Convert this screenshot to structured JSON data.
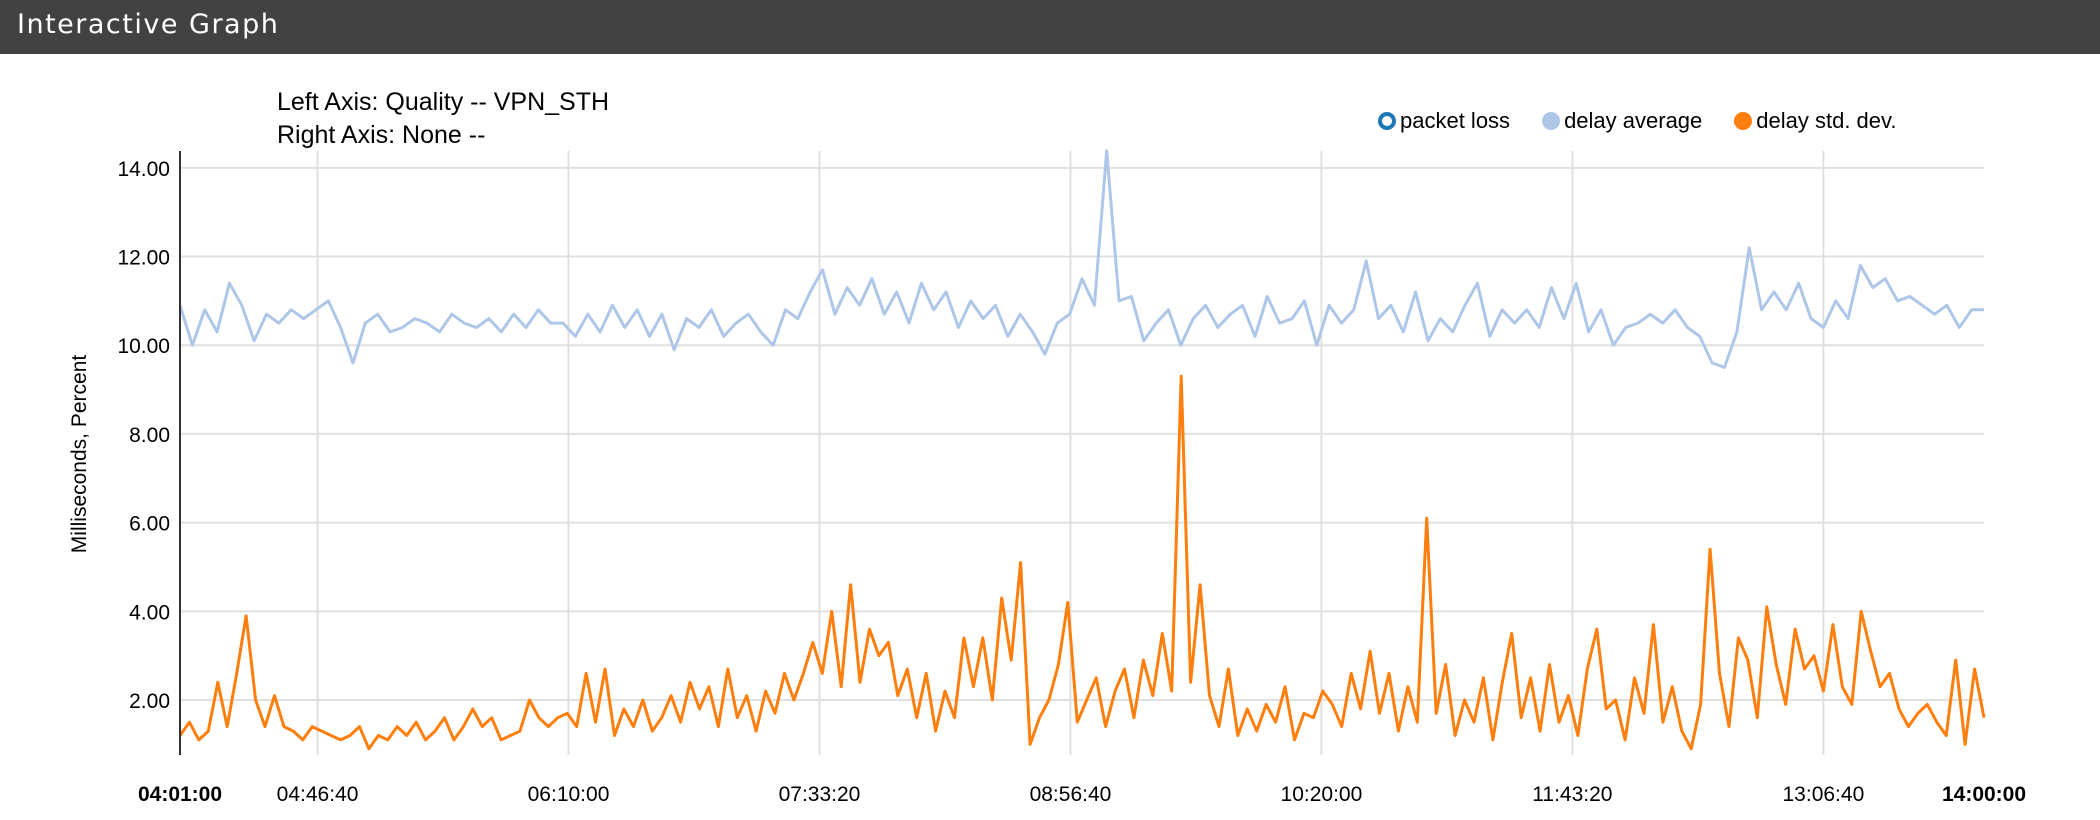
{
  "header": {
    "title": "Interactive Graph"
  },
  "axis_info": {
    "left": "Left Axis: Quality -- VPN_STH",
    "right": "Right Axis: None --"
  },
  "legend": [
    {
      "label": "packet loss",
      "color": "#1f77b4",
      "hollow": true
    },
    {
      "label": "delay average",
      "color": "#aec7e8",
      "hollow": false
    },
    {
      "label": "delay std. dev.",
      "color": "#ff7f0e",
      "hollow": false
    }
  ],
  "chart_data": {
    "type": "line",
    "title": "Quality -- VPN_STH",
    "xlabel": "",
    "ylabel": "Milliseconds, Percent",
    "ylim": [
      0.76,
      14.38
    ],
    "yticks": [
      "2.00",
      "4.00",
      "6.00",
      "8.00",
      "10.00",
      "12.00",
      "14.00"
    ],
    "ytick_values": [
      2,
      4,
      6,
      8,
      10,
      12,
      14
    ],
    "xlim": [
      "04:01:00",
      "14:00:00"
    ],
    "xticks": [
      "04:01:00",
      "04:46:40",
      "06:10:00",
      "07:33:20",
      "08:56:40",
      "10:20:00",
      "11:43:20",
      "13:06:40",
      "14:00:00"
    ],
    "xtick_bold": [
      true,
      false,
      false,
      false,
      false,
      false,
      false,
      false,
      true
    ],
    "xtick_seconds": [
      0,
      2740,
      7740,
      12740,
      17740,
      22740,
      27740,
      32740,
      35940
    ],
    "grid": true,
    "legend_position": "top-right",
    "x_interval_seconds": 300,
    "series": [
      {
        "name": "packet loss",
        "color": "#1f77b4",
        "values": []
      },
      {
        "name": "delay average",
        "color": "#aec7e8",
        "values": [
          10.9,
          10.0,
          10.8,
          10.3,
          11.4,
          10.9,
          10.1,
          10.7,
          10.5,
          10.8,
          10.6,
          10.8,
          11.0,
          10.4,
          9.6,
          10.5,
          10.7,
          10.3,
          10.4,
          10.6,
          10.5,
          10.3,
          10.7,
          10.5,
          10.4,
          10.6,
          10.3,
          10.7,
          10.4,
          10.8,
          10.5,
          10.5,
          10.2,
          10.7,
          10.3,
          10.9,
          10.4,
          10.8,
          10.2,
          10.7,
          9.9,
          10.6,
          10.4,
          10.8,
          10.2,
          10.5,
          10.7,
          10.3,
          10.0,
          10.8,
          10.6,
          11.2,
          11.7,
          10.7,
          11.3,
          10.9,
          11.5,
          10.7,
          11.2,
          10.5,
          11.4,
          10.8,
          11.2,
          10.4,
          11.0,
          10.6,
          10.9,
          10.2,
          10.7,
          10.3,
          9.8,
          10.5,
          10.7,
          11.5,
          10.9,
          14.4,
          11.0,
          11.1,
          10.1,
          10.5,
          10.8,
          10.0,
          10.6,
          10.9,
          10.4,
          10.7,
          10.9,
          10.2,
          11.1,
          10.5,
          10.6,
          11.0,
          10.0,
          10.9,
          10.5,
          10.8,
          11.9,
          10.6,
          10.9,
          10.3,
          11.2,
          10.1,
          10.6,
          10.3,
          10.9,
          11.4,
          10.2,
          10.8,
          10.5,
          10.8,
          10.4,
          11.3,
          10.6,
          11.4,
          10.3,
          10.8,
          10.0,
          10.4,
          10.5,
          10.7,
          10.5,
          10.8,
          10.4,
          10.2,
          9.6,
          9.5,
          10.3,
          12.2,
          10.8,
          11.2,
          10.8,
          11.4,
          10.6,
          10.4,
          11.0,
          10.6,
          11.8,
          11.3,
          11.5,
          11.0,
          11.1,
          10.9,
          10.7,
          10.9,
          10.4,
          10.8,
          10.8
        ]
      },
      {
        "name": "delay std. dev.",
        "color": "#ff7f0e",
        "values": [
          1.2,
          1.5,
          1.1,
          1.3,
          2.4,
          1.4,
          2.6,
          3.9,
          2.0,
          1.4,
          2.1,
          1.4,
          1.3,
          1.1,
          1.4,
          1.3,
          1.2,
          1.1,
          1.2,
          1.4,
          0.9,
          1.2,
          1.1,
          1.4,
          1.2,
          1.5,
          1.1,
          1.3,
          1.6,
          1.1,
          1.4,
          1.8,
          1.4,
          1.6,
          1.1,
          1.2,
          1.3,
          2.0,
          1.6,
          1.4,
          1.6,
          1.7,
          1.4,
          2.6,
          1.5,
          2.7,
          1.2,
          1.8,
          1.4,
          2.0,
          1.3,
          1.6,
          2.1,
          1.5,
          2.4,
          1.8,
          2.3,
          1.4,
          2.7,
          1.6,
          2.1,
          1.3,
          2.2,
          1.7,
          2.6,
          2.0,
          2.6,
          3.3,
          2.6,
          4.0,
          2.3,
          4.6,
          2.4,
          3.6,
          3.0,
          3.3,
          2.1,
          2.7,
          1.6,
          2.6,
          1.3,
          2.2,
          1.6,
          3.4,
          2.3,
          3.4,
          2.0,
          4.3,
          2.9,
          5.1,
          1.0,
          1.6,
          2.0,
          2.8,
          4.2,
          1.5,
          2.0,
          2.5,
          1.4,
          2.2,
          2.7,
          1.6,
          2.9,
          2.1,
          3.5,
          2.2,
          9.3,
          2.4,
          4.6,
          2.1,
          1.4,
          2.7,
          1.2,
          1.8,
          1.3,
          1.9,
          1.5,
          2.3,
          1.1,
          1.7,
          1.6,
          2.2,
          1.9,
          1.4,
          2.6,
          1.8,
          3.1,
          1.7,
          2.6,
          1.3,
          2.3,
          1.5,
          6.1,
          1.7,
          2.8,
          1.2,
          2.0,
          1.5,
          2.5,
          1.1,
          2.4,
          3.5,
          1.6,
          2.5,
          1.3,
          2.8,
          1.5,
          2.1,
          1.2,
          2.7,
          3.6,
          1.8,
          2.0,
          1.1,
          2.5,
          1.7,
          3.7,
          1.5,
          2.3,
          1.3,
          0.9,
          1.9,
          5.4,
          2.6,
          1.4,
          3.4,
          2.9,
          1.6,
          4.1,
          2.8,
          1.9,
          3.6,
          2.7,
          3.0,
          2.2,
          3.7,
          2.3,
          1.9,
          4.0,
          3.1,
          2.3,
          2.6,
          1.8,
          1.4,
          1.7,
          1.9,
          1.5,
          1.2,
          2.9,
          1.0,
          2.7,
          1.6
        ]
      }
    ]
  }
}
